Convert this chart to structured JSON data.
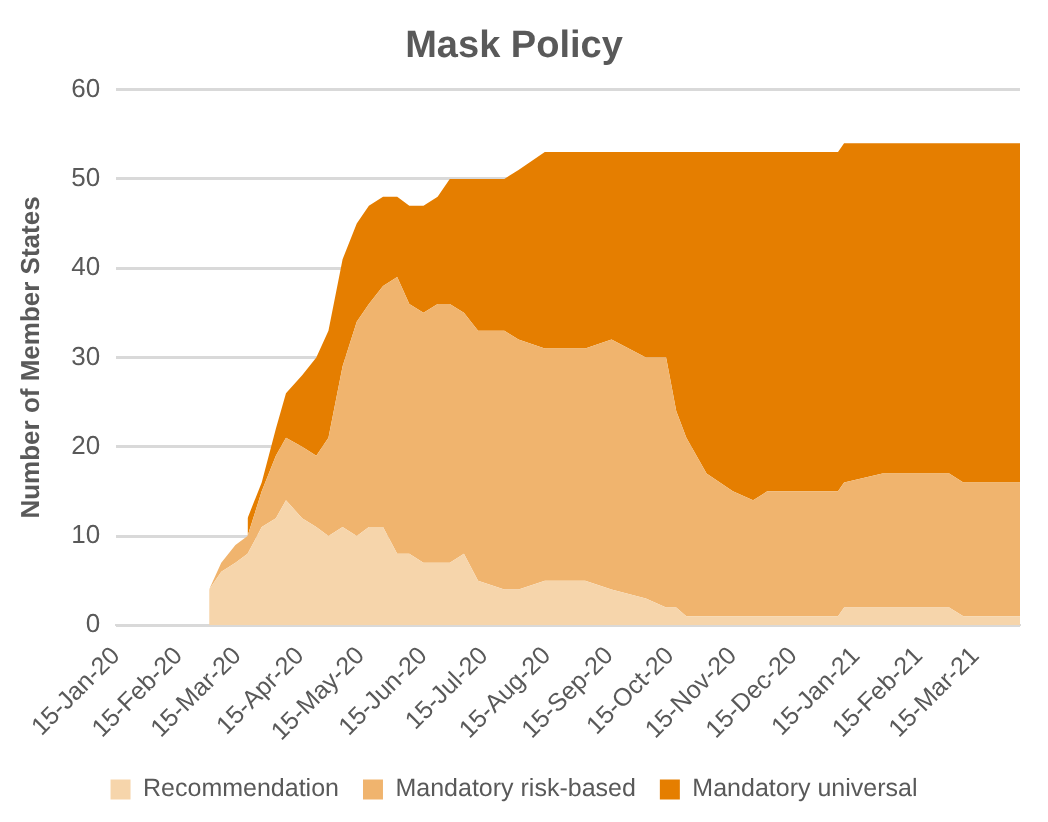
{
  "chart_data": {
    "type": "area",
    "title": "Mask Policy",
    "ylabel": "Number of Member States",
    "stacked": true,
    "x": [
      "2020-03-01",
      "2020-03-07",
      "2020-03-14",
      "2020-03-20",
      "2020-03-27",
      "2020-04-03",
      "2020-04-08",
      "2020-04-16",
      "2020-04-23",
      "2020-04-29",
      "2020-05-06",
      "2020-05-13",
      "2020-05-19",
      "2020-05-26",
      "2020-06-02",
      "2020-06-08",
      "2020-06-15",
      "2020-06-22",
      "2020-06-28",
      "2020-07-05",
      "2020-07-12",
      "2020-07-25",
      "2020-08-01",
      "2020-08-14",
      "2020-09-03",
      "2020-09-16",
      "2020-10-03",
      "2020-10-13",
      "2020-10-18",
      "2020-10-23",
      "2020-11-02",
      "2020-11-15",
      "2020-11-25",
      "2020-12-02",
      "2021-01-06",
      "2021-01-09",
      "2021-01-28",
      "2021-03-02",
      "2021-03-09",
      "2021-04-06"
    ],
    "series": [
      {
        "name": "Recommendation",
        "color": "#f6d5ab",
        "values": [
          4,
          6,
          7,
          8,
          11,
          12,
          14,
          12,
          11,
          10,
          11,
          10,
          11,
          11,
          8,
          8,
          7,
          7,
          7,
          8,
          5,
          4,
          4,
          5,
          5,
          4,
          3,
          2,
          2,
          1,
          1,
          1,
          1,
          1,
          1,
          2,
          2,
          2,
          1,
          1
        ]
      },
      {
        "name": "Mandatory risk-based",
        "color": "#f0b46e",
        "values": [
          0,
          1,
          2,
          2,
          4,
          7,
          7,
          8,
          8,
          11,
          18,
          24,
          25,
          27,
          31,
          28,
          28,
          29,
          29,
          27,
          28,
          29,
          28,
          26,
          26,
          28,
          27,
          28,
          22,
          20,
          16,
          14,
          13,
          14,
          14,
          14,
          15,
          15,
          15,
          15
        ]
      },
      {
        "name": "Mandatory universal",
        "color": "#e57e00",
        "values": [
          null,
          null,
          null,
          2,
          1,
          3,
          5,
          8,
          11,
          12,
          12,
          11,
          11,
          10,
          9,
          11,
          12,
          12,
          14,
          15,
          17,
          17,
          19,
          22,
          22,
          21,
          23,
          23,
          29,
          32,
          36,
          38,
          39,
          38,
          38,
          38,
          37,
          37,
          38,
          38
        ]
      }
    ],
    "xlim": [
      "2020-01-15",
      "2021-04-06"
    ],
    "xticks": [
      {
        "value": "2020-01-15",
        "label": "15-Jan-20"
      },
      {
        "value": "2020-02-15",
        "label": "15-Feb-20"
      },
      {
        "value": "2020-03-15",
        "label": "15-Mar-20"
      },
      {
        "value": "2020-04-15",
        "label": "15-Apr-20"
      },
      {
        "value": "2020-05-15",
        "label": "15-May-20"
      },
      {
        "value": "2020-06-15",
        "label": "15-Jun-20"
      },
      {
        "value": "2020-07-15",
        "label": "15-Jul-20"
      },
      {
        "value": "2020-08-15",
        "label": "15-Aug-20"
      },
      {
        "value": "2020-09-15",
        "label": "15-Sep-20"
      },
      {
        "value": "2020-10-15",
        "label": "15-Oct-20"
      },
      {
        "value": "2020-11-15",
        "label": "15-Nov-20"
      },
      {
        "value": "2020-12-15",
        "label": "15-Dec-20"
      },
      {
        "value": "2021-01-15",
        "label": "15-Jan-21"
      },
      {
        "value": "2021-02-15",
        "label": "15-Feb-21"
      },
      {
        "value": "2021-03-15",
        "label": "15-Mar-21"
      }
    ],
    "ylim": [
      0,
      60
    ],
    "yticks": [
      0,
      10,
      20,
      30,
      40,
      50,
      60
    ],
    "grid": "y",
    "legend": "bottom",
    "marker": "none"
  }
}
